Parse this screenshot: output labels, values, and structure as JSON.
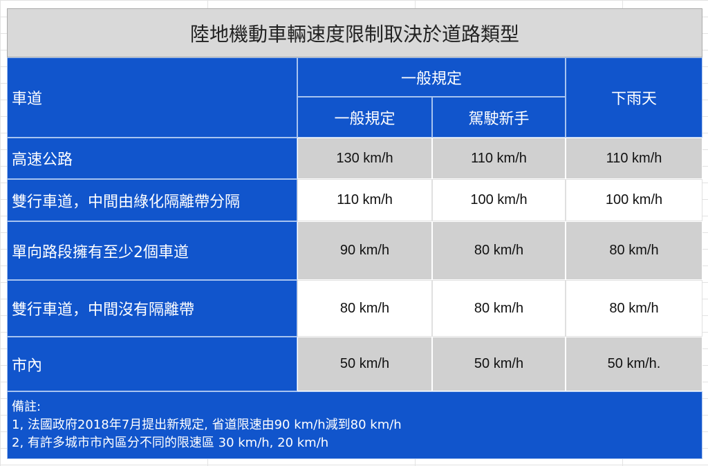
{
  "title": "陸地機動車輛速度限制取決於道路類型",
  "header": {
    "lane": "車道",
    "general_group": "一般規定",
    "general": "一般規定",
    "novice": "駕駛新手",
    "rain": "下雨天"
  },
  "rows": [
    {
      "road": "高速公路",
      "general": "130 km/h",
      "novice": "110 km/h",
      "rain": "110 km/h"
    },
    {
      "road": "雙行車道，中間由綠化隔離帶分隔",
      "general": "110 km/h",
      "novice": "100 km/h",
      "rain": "100 km/h"
    },
    {
      "road": "單向路段擁有至少2個車道",
      "general": "90 km/h",
      "novice": "80 km/h",
      "rain": "80 km/h"
    },
    {
      "road": "雙行車道，中間沒有隔離帶",
      "general": "80 km/h",
      "novice": "80 km/h",
      "rain": "80 km/h"
    },
    {
      "road": "市內",
      "general": "50 km/h",
      "novice": "50 km/h",
      "rain": "50 km/h."
    }
  ],
  "notes": {
    "heading": "備註:",
    "lines": [
      "1, 法國政府2018年7月提出新規定, 省道限速由90 km/h減到80 km/h",
      "2, 有許多城市市內區分不同的限速區  30 km/h, 20 km/h"
    ]
  },
  "colors": {
    "header_blue": "#1155cc",
    "row_gray": "#d0d0d0",
    "title_gray": "#d9d9d9"
  }
}
